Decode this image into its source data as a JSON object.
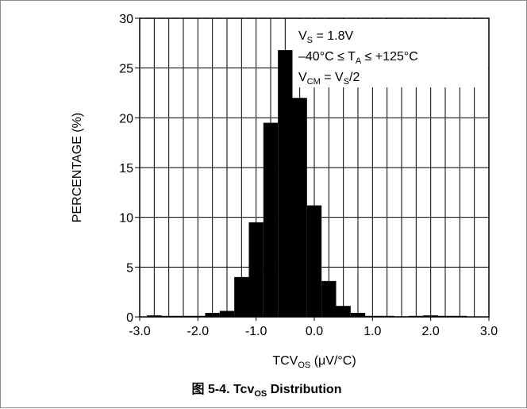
{
  "chart_data": {
    "type": "bar",
    "xlabel": "TCV",
    "xlabel_sub": "OS",
    "xlabel_unit": " (μV/°C)",
    "ylabel": "PERCENTAGE (%)",
    "xlim": [
      -3.0,
      3.0
    ],
    "ylim": [
      0,
      30
    ],
    "bin_width": 0.25,
    "x_ticks": [
      "-3.0",
      "-2.0",
      "-1.0",
      "0.0",
      "1.0",
      "2.0",
      "3.0"
    ],
    "y_ticks": [
      "0",
      "5",
      "10",
      "15",
      "20",
      "25",
      "30"
    ],
    "grid": true,
    "bins": [
      {
        "x": -2.75,
        "value": 0.15
      },
      {
        "x": -2.5,
        "value": 0.1
      },
      {
        "x": -2.25,
        "value": 0.1
      },
      {
        "x": -2.0,
        "value": 0.1
      },
      {
        "x": -1.75,
        "value": 0.4
      },
      {
        "x": -1.5,
        "value": 0.6
      },
      {
        "x": -1.25,
        "value": 4.0
      },
      {
        "x": -1.0,
        "value": 9.5
      },
      {
        "x": -0.75,
        "value": 19.5
      },
      {
        "x": -0.5,
        "value": 26.8
      },
      {
        "x": -0.25,
        "value": 22.0
      },
      {
        "x": 0.0,
        "value": 11.2
      },
      {
        "x": 0.25,
        "value": 3.6
      },
      {
        "x": 0.5,
        "value": 1.1
      },
      {
        "x": 0.75,
        "value": 0.4
      },
      {
        "x": 1.0,
        "value": 0.1
      },
      {
        "x": 1.25,
        "value": 0.1
      },
      {
        "x": 1.5,
        "value": 0.05
      },
      {
        "x": 1.75,
        "value": 0.1
      },
      {
        "x": 2.0,
        "value": 0.15
      },
      {
        "x": 2.25,
        "value": 0.1
      },
      {
        "x": 2.5,
        "value": 0.1
      }
    ],
    "annotations": [
      {
        "parts": [
          [
            "V",
            ""
          ],
          [
            "S",
            "sub"
          ],
          [
            " = 1.8V",
            ""
          ]
        ]
      },
      {
        "parts": [
          [
            "–40°C ≤ T",
            ""
          ],
          [
            "A",
            "sub"
          ],
          [
            " ≤ +125°C",
            ""
          ]
        ]
      },
      {
        "parts": [
          [
            "V",
            ""
          ],
          [
            "CM",
            "sub"
          ],
          [
            " = V",
            ""
          ],
          [
            "S",
            "sub"
          ],
          [
            "/2",
            ""
          ]
        ]
      }
    ],
    "title_parts": [
      [
        "图 5-4. Tcv",
        ""
      ],
      [
        "OS",
        "sub"
      ],
      [
        " Distribution",
        ""
      ]
    ]
  }
}
